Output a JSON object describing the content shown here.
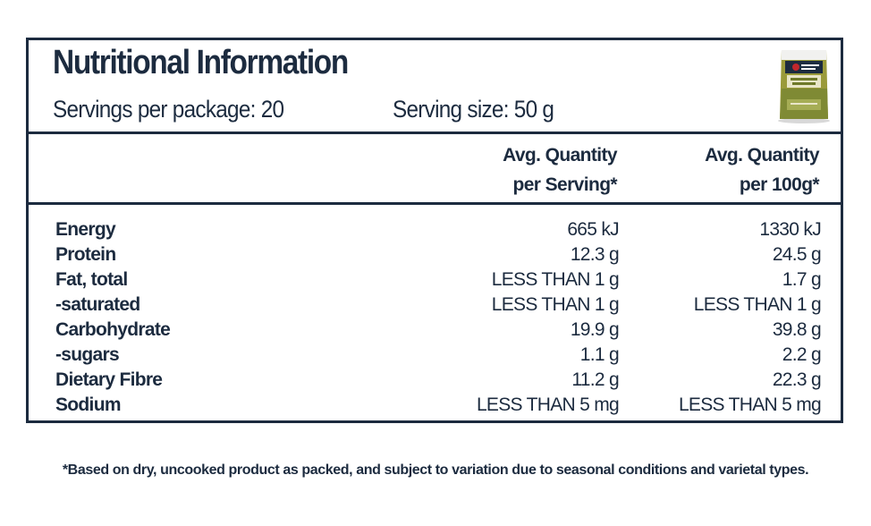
{
  "panel": {
    "title": "Nutritional Information",
    "servings_per_package": "Servings per package: 20",
    "serving_size": "Serving size: 50 g",
    "product_image": "lentils-package-icon",
    "columns": {
      "per_serving": [
        "Avg. Quantity",
        "per Serving*"
      ],
      "per_100g": [
        "Avg. Quantity",
        "per 100g*"
      ]
    },
    "rows": [
      {
        "label": "Energy",
        "per_serving": "665 kJ",
        "per_100g": "1330 kJ"
      },
      {
        "label": "Protein",
        "per_serving": "12.3 g",
        "per_100g": "24.5 g"
      },
      {
        "label": "Fat, total",
        "per_serving": "LESS THAN 1 g",
        "per_100g": "1.7 g"
      },
      {
        "label": "-saturated",
        "per_serving": "LESS THAN 1 g",
        "per_100g": "LESS THAN 1 g"
      },
      {
        "label": "Carbohydrate",
        "per_serving": "19.9 g",
        "per_100g": "39.8 g"
      },
      {
        "label": "-sugars",
        "per_serving": "1.1 g",
        "per_100g": "2.2 g"
      },
      {
        "label": "Dietary Fibre",
        "per_serving": "11.2 g",
        "per_100g": "22.3 g"
      },
      {
        "label": "Sodium",
        "per_serving": "LESS THAN 5 mg",
        "per_100g": "LESS THAN 5 mg"
      }
    ]
  },
  "footnote": "*Based on dry, uncooked product as packed, and subject to variation due to seasonal conditions and varietal types.",
  "colors": {
    "ink": "#1c2b3f",
    "background": "#ffffff"
  }
}
